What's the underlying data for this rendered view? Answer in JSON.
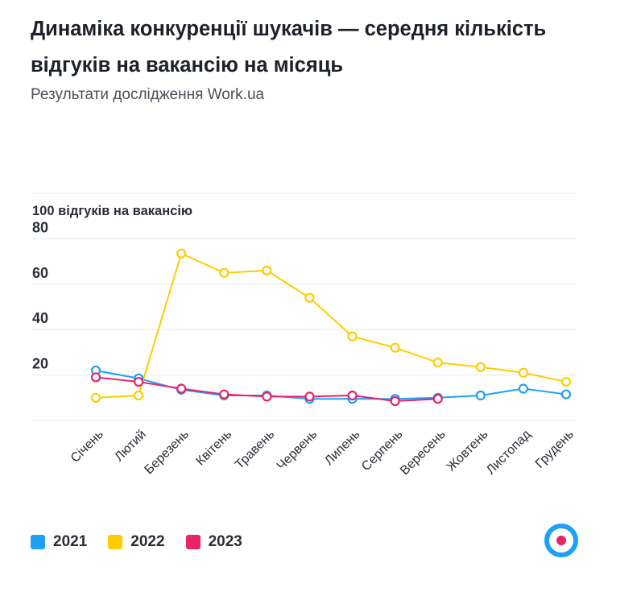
{
  "header": {
    "title": "Динаміка конкуренції шукачів — середня кількість відгуків на вакансію на місяць",
    "subtitle": "Результати дослідження Work.ua"
  },
  "logo": {
    "icon": "work-ua-logo-icon",
    "outer_color": "#1ea0f5",
    "inner_color": "#e6246a"
  },
  "chart_data": {
    "type": "line",
    "title": "Динаміка конкуренції шукачів — середня кількість відгуків на вакансію на місяць",
    "subtitle": "Результати дослідження Work.ua",
    "ylabel": "",
    "top_tick_label": "100 відгуків на вакансію",
    "ylim": [
      0,
      100
    ],
    "y_ticks": [
      20,
      40,
      60,
      80
    ],
    "grid": true,
    "legend_position": "bottom-left",
    "categories": [
      "Січень",
      "Лютий",
      "Березень",
      "Квітень",
      "Травень",
      "Червень",
      "Липень",
      "Серпень",
      "Вересень",
      "Жовтень",
      "Листопад",
      "Грудень"
    ],
    "series": [
      {
        "name": "2021",
        "color": "#1ea0f5",
        "values": [
          22,
          18.5,
          13.5,
          11,
          11,
          9.5,
          9.5,
          9.5,
          10,
          11,
          14,
          11.5
        ]
      },
      {
        "name": "2022",
        "color": "#ffcc00",
        "values": [
          10,
          11,
          73.5,
          65,
          66,
          54,
          37,
          32,
          25.5,
          23.5,
          21,
          17
        ]
      },
      {
        "name": "2023",
        "color": "#e6246a",
        "values": [
          19,
          17,
          14,
          11.5,
          10.5,
          10.5,
          11,
          8.5,
          9.5,
          null,
          null,
          null
        ]
      }
    ]
  }
}
